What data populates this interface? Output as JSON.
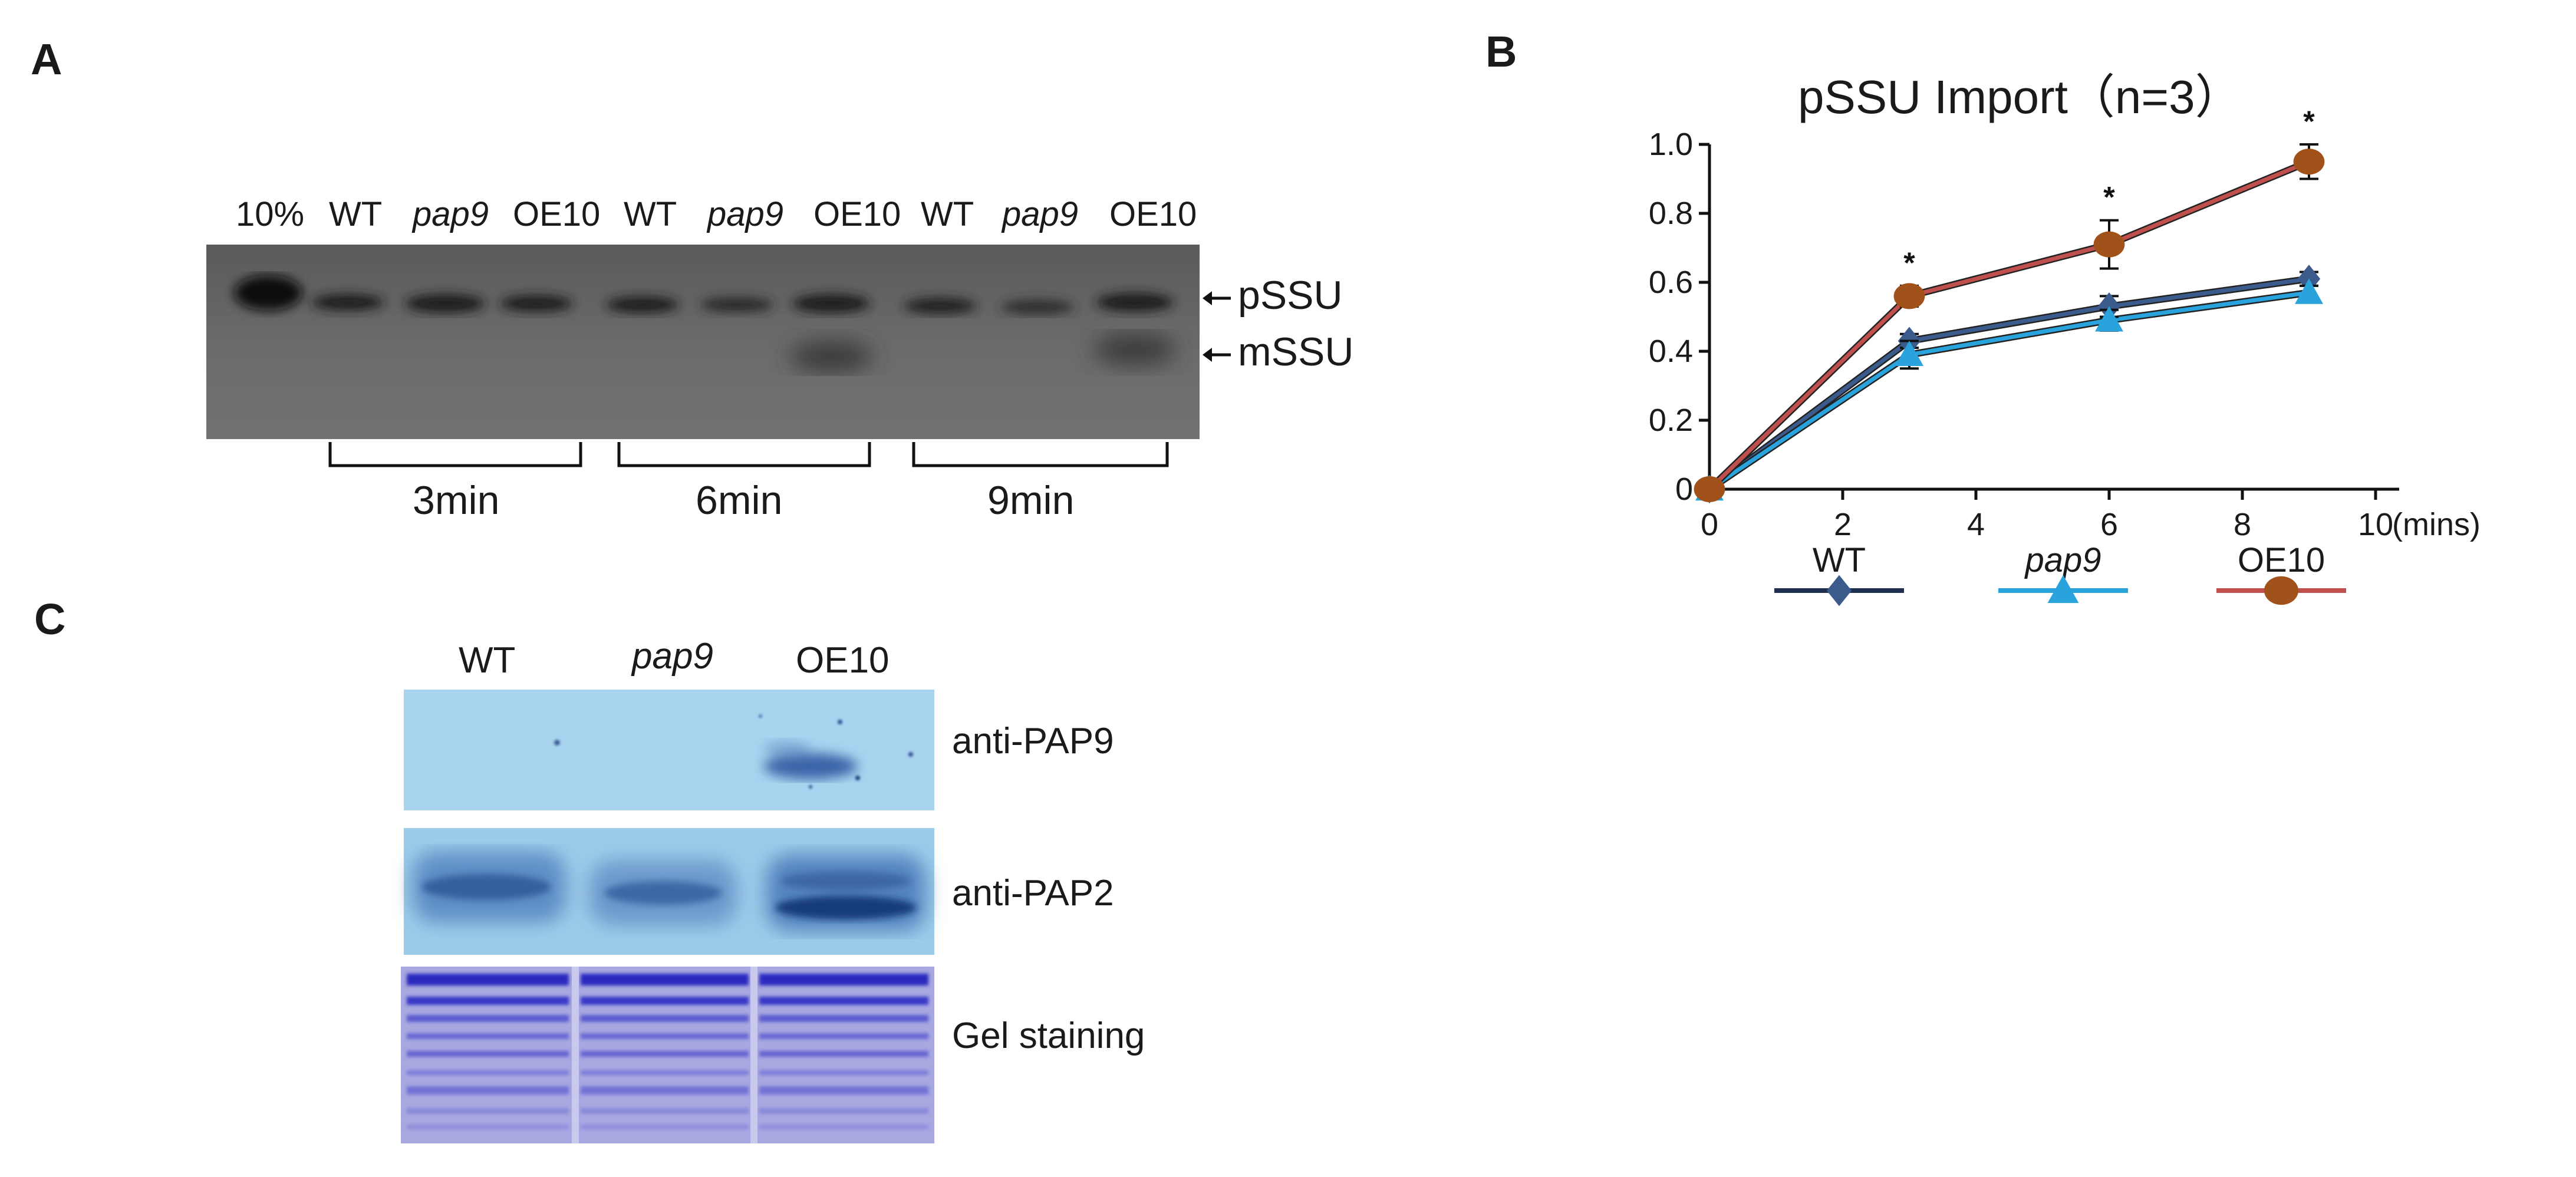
{
  "panel_labels": {
    "a": "A",
    "b": "B",
    "c": "C"
  },
  "panel_a": {
    "lanes": [
      "10%",
      "WT",
      "pap9",
      "OE10",
      "WT",
      "pap9",
      "OE10",
      "WT",
      "pap9",
      "OE10"
    ],
    "band_labels": {
      "pssu": "pSSU",
      "mssu": "mSSU"
    },
    "time_groups": [
      "3min",
      "6min",
      "9min"
    ]
  },
  "panel_b": {
    "chart_data": {
      "type": "line",
      "title": "pSSU Import（n=3）",
      "xlabel": "(mins)",
      "ylabel": "",
      "x_ticks": [
        "0",
        "2",
        "4",
        "6",
        "8",
        "10"
      ],
      "y_ticks": [
        "0",
        "0.2",
        "0.4",
        "0.6",
        "0.8",
        "1.0"
      ],
      "xlim": [
        0,
        10
      ],
      "ylim": [
        0,
        1.0
      ],
      "x": [
        0,
        3,
        6,
        9
      ],
      "series": [
        {
          "name": "WT",
          "values": [
            0,
            0.43,
            0.53,
            0.61
          ],
          "errors": [
            0,
            0.02,
            0.03,
            0.02
          ],
          "color": "#3b5b8c",
          "marker": "diamond"
        },
        {
          "name": "pap9",
          "values": [
            0,
            0.39,
            0.49,
            0.57
          ],
          "errors": [
            0,
            0.04,
            0.03,
            0.02
          ],
          "color": "#2aa3dc",
          "marker": "triangle"
        },
        {
          "name": "OE10",
          "values": [
            0,
            0.56,
            0.71,
            0.95
          ],
          "errors": [
            0,
            0.03,
            0.07,
            0.05
          ],
          "color": "#c0504d",
          "marker_color": "#a0521a",
          "marker": "circle"
        }
      ],
      "significance_marks": [
        "*",
        "*",
        "*"
      ],
      "grid": false,
      "legend_position": "bottom"
    }
  },
  "panel_c": {
    "lanes": [
      "WT",
      "pap9",
      "OE10"
    ],
    "rows": [
      "anti-PAP9",
      "anti-PAP2",
      "Gel staining"
    ]
  }
}
